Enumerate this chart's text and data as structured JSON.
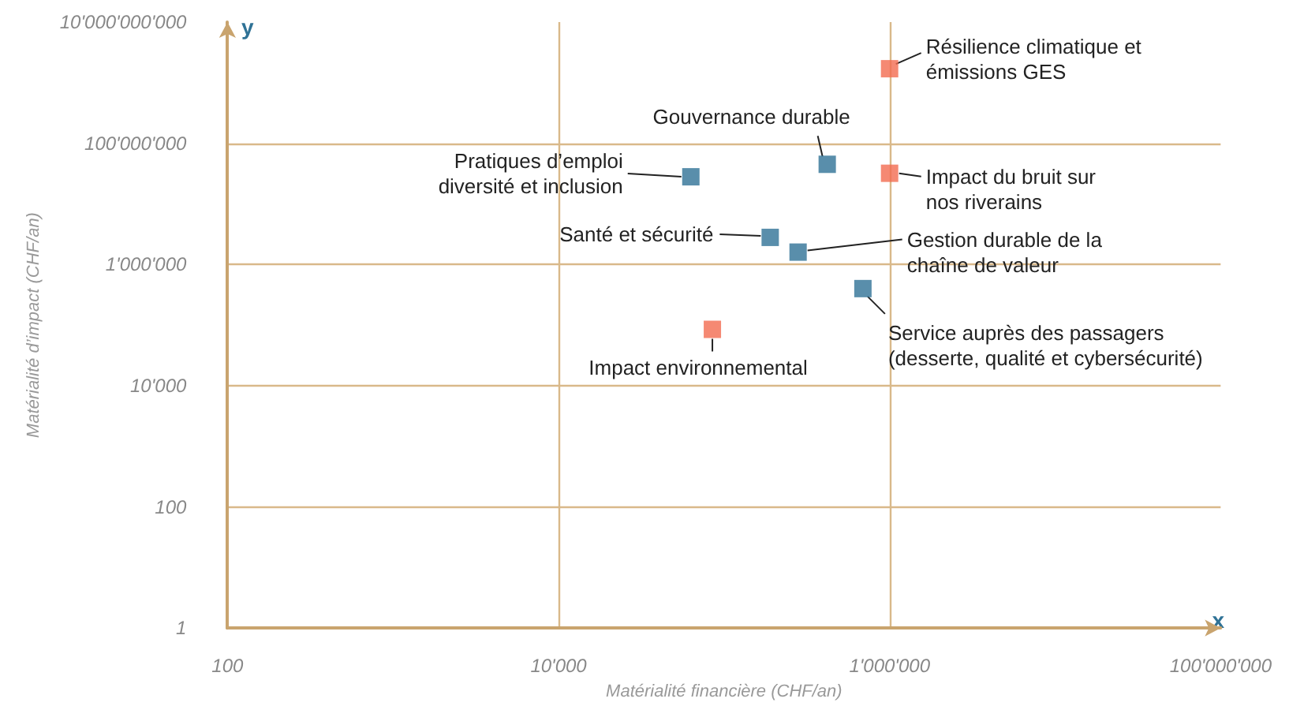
{
  "chart_data": {
    "type": "scatter",
    "xlabel": "Matérialité financière (CHF/an)",
    "ylabel": "Matérialité d’impact (CHF/an)",
    "series": [
      {
        "color": "#f26b50",
        "x": [
          1000000,
          1000000,
          85000
        ],
        "values": [
          1700000000,
          32000000,
          85000
        ]
      },
      {
        "color": "#2f7296",
        "x": [
          420000,
          63000,
          190000,
          280000,
          690000
        ],
        "values": [
          45000000,
          28000000,
          2800000,
          1600000,
          400000
        ]
      }
    ],
    "xlim": [
      100,
      100000000
    ],
    "ylim": [
      1,
      10000000000
    ],
    "xticks": [
      100,
      {
        "value": 10000,
        "label": "10'000"
      },
      {
        "value": 1000000,
        "label": "1'000'000"
      },
      {
        "value": 100000000,
        "label": "100'000'000"
      }
    ],
    "yticks": [
      1,
      100,
      {
        "value": 10000,
        "label": "10'000"
      },
      {
        "value": 1000000,
        "label": "1'000'000"
      },
      {
        "value": 100000000,
        "label": "100'000'000"
      },
      {
        "value": 10000000000,
        "label": "10'000'000'000"
      }
    ],
    "log": "xy",
    "grid": true,
    "marker": "square",
    "annotations": [
      "y",
      "x",
      {
        "text": "Résilience climatique et\némissions GES",
        "x": 1000000,
        "y": 1700000000
      },
      {
        "text": "Gouvernance durable",
        "x": 420000,
        "y": 45000000
      },
      {
        "text": "Pratiques d’emploi\ndiversité et inclusion",
        "x": 63000,
        "y": 28000000
      },
      {
        "text": "Impact du bruit sur\nnos riverains",
        "x": 1000000,
        "y": 32000000
      },
      {
        "text": "Santé et sécurité",
        "x": 190000,
        "y": 2800000
      },
      {
        "text": "Gestion durable de la\nchaîne de valeur",
        "x": 280000,
        "y": 1600000
      },
      {
        "text": "Service auprès des passagers\n(desserte, qualité et cybersécurité)",
        "x": 690000,
        "y": 400000
      },
      {
        "text": "Impact environnemental",
        "x": 85000,
        "y": 85000
      }
    ]
  }
}
